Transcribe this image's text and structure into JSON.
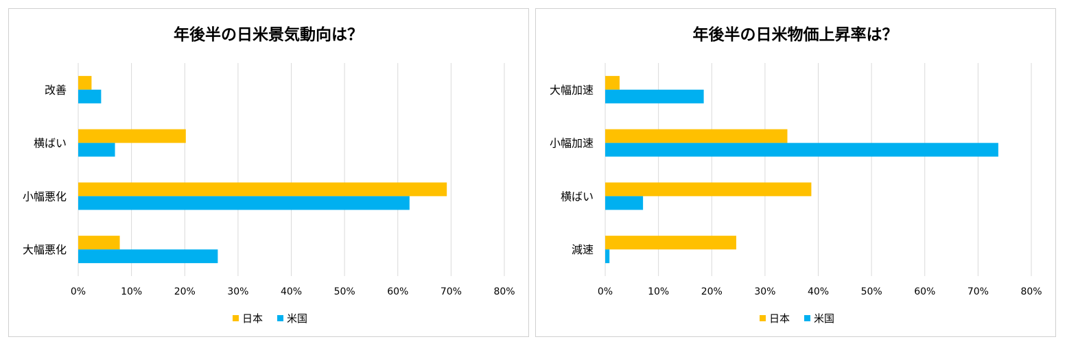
{
  "colors": {
    "japan": "#FFC000",
    "us": "#00B0F0",
    "grid": "#d9d9d9",
    "text": "#000000"
  },
  "chart_data": [
    {
      "type": "bar",
      "orientation": "horizontal",
      "title": "年後半の日米景気動向は？",
      "categories": [
        "改善",
        "横ばい",
        "小幅悪化",
        "大幅悪化"
      ],
      "series": [
        {
          "name": "日本",
          "values": [
            2.5,
            20.2,
            69.2,
            7.8
          ]
        },
        {
          "name": "米国",
          "values": [
            4.3,
            6.9,
            62.2,
            26.2
          ]
        }
      ],
      "xlim": [
        0,
        80
      ],
      "x_ticks": [
        "0%",
        "10%",
        "20%",
        "30%",
        "40%",
        "50%",
        "60%",
        "70%",
        "80%"
      ],
      "grid": true,
      "legend": "bottom"
    },
    {
      "type": "bar",
      "orientation": "horizontal",
      "title": "年後半の日米物価上昇率は？",
      "categories": [
        "大幅加速",
        "小幅加速",
        "横ばい",
        "減速"
      ],
      "series": [
        {
          "name": "日本",
          "values": [
            2.7,
            34.2,
            38.7,
            24.6
          ]
        },
        {
          "name": "米国",
          "values": [
            18.5,
            73.8,
            7.1,
            0.8
          ]
        }
      ],
      "xlim": [
        0,
        80
      ],
      "x_ticks": [
        "0%",
        "10%",
        "20%",
        "30%",
        "40%",
        "50%",
        "60%",
        "70%",
        "80%"
      ],
      "grid": true,
      "legend": "bottom"
    }
  ]
}
